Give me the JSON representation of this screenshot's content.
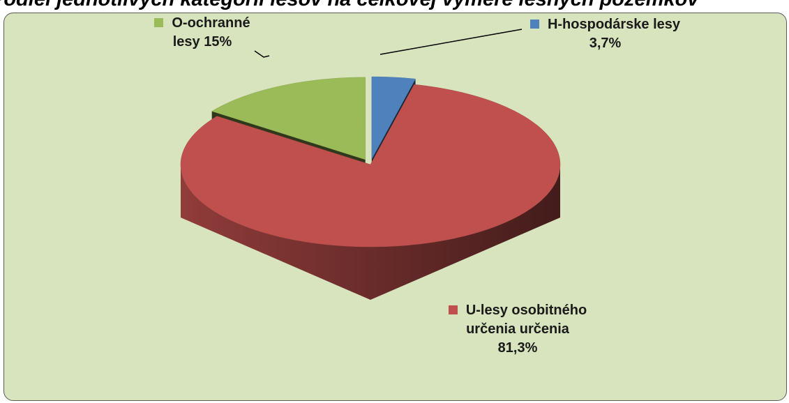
{
  "chart_data": {
    "type": "pie3d",
    "title": "Podiel jednotlivých kategórií lesov na celkovej výmere lesných pozemkov",
    "categories": [
      "H-hospodárske lesy",
      "U-lesy osobitného určenia určenia",
      "O-ochranné lesy"
    ],
    "values": [
      3.7,
      81.3,
      15
    ],
    "value_labels": [
      "3,7%",
      "81,3%",
      "15%"
    ],
    "colors": [
      "#4f81bd",
      "#c0504d",
      "#9bbb59"
    ]
  }
}
